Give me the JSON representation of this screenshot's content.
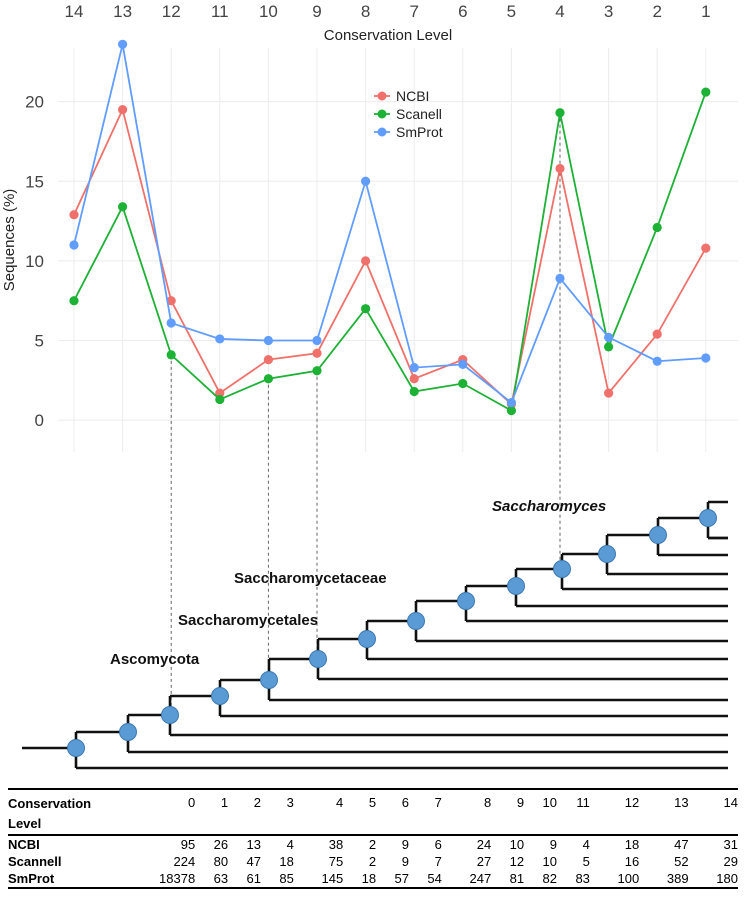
{
  "chart_data": {
    "type": "line",
    "top_axis_label": "Conservation Level",
    "ylabel": "Sequences (%)",
    "ylim": [
      -2,
      25
    ],
    "yticks": [
      0,
      5,
      10,
      15,
      20
    ],
    "categories": [
      "14",
      "13",
      "12",
      "11",
      "10",
      "9",
      "8",
      "7",
      "6",
      "5",
      "4",
      "3",
      "2",
      "1"
    ],
    "series": [
      {
        "name": "NCBI",
        "color": "#f0716b",
        "values": [
          12.9,
          19.5,
          7.5,
          1.7,
          3.8,
          4.2,
          10.0,
          2.6,
          3.8,
          1.0,
          15.8,
          1.7,
          5.4,
          10.8
        ]
      },
      {
        "name": "Scanell",
        "color": "#1db136",
        "values": [
          7.5,
          13.4,
          4.1,
          1.3,
          2.6,
          3.1,
          7.0,
          1.8,
          2.3,
          0.6,
          19.3,
          4.6,
          12.1,
          20.6
        ]
      },
      {
        "name": "SmProt",
        "color": "#619cff",
        "values": [
          11.0,
          23.6,
          6.1,
          5.1,
          5.0,
          5.0,
          15.0,
          3.3,
          3.5,
          1.1,
          8.9,
          5.2,
          3.7,
          3.9
        ]
      }
    ],
    "legend_position": "top-center",
    "tree_clades": [
      {
        "label": "Ascomycota",
        "italic": false
      },
      {
        "label": "Saccharomycetales",
        "italic": false
      },
      {
        "label": "Saccharomycetaceae",
        "italic": false
      },
      {
        "label": "Saccharomyces",
        "italic": true
      }
    ]
  },
  "table": {
    "header_label": "Conservation Level",
    "levels": [
      "0",
      "1",
      "2",
      "3",
      "4",
      "5",
      "6",
      "7",
      "8",
      "9",
      "10",
      "11",
      "12",
      "13",
      "14"
    ],
    "rows": [
      {
        "name": "NCBI",
        "values": [
          "95",
          "26",
          "13",
          "4",
          "38",
          "2",
          "9",
          "6",
          "24",
          "10",
          "9",
          "4",
          "18",
          "47",
          "31"
        ]
      },
      {
        "name": "Scannell",
        "values": [
          "224",
          "80",
          "47",
          "18",
          "75",
          "2",
          "9",
          "7",
          "27",
          "12",
          "10",
          "5",
          "16",
          "52",
          "29"
        ]
      },
      {
        "name": "SmProt",
        "values": [
          "18378",
          "63",
          "61",
          "85",
          "145",
          "18",
          "57",
          "54",
          "247",
          "81",
          "82",
          "83",
          "100",
          "389",
          "180"
        ]
      }
    ]
  }
}
